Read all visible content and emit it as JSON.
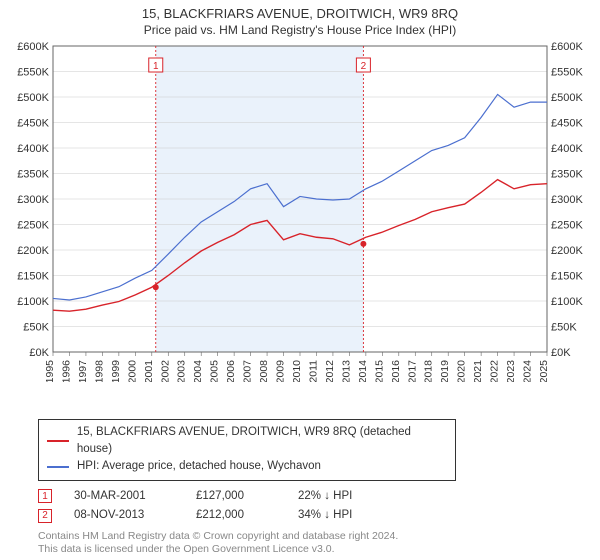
{
  "title": "15, BLACKFRIARS AVENUE, DROITWICH, WR9 8RQ",
  "subtitle": "Price paid vs. HM Land Registry's House Price Index (HPI)",
  "chart": {
    "type": "line",
    "background_color": "#ffffff",
    "plot_border_color": "#666666",
    "grid_color": "#cccccc",
    "band_color": "#eaf2fb",
    "xlim": [
      1995,
      2025
    ],
    "ylim_left": [
      0,
      600000
    ],
    "ylim_right": [
      0,
      600000
    ],
    "ytick_step": 50000,
    "ytick_format_prefix": "£",
    "ytick_format_suffix": "K",
    "x_categories": [
      1995,
      1996,
      1997,
      1998,
      1999,
      2000,
      2001,
      2002,
      2003,
      2004,
      2005,
      2006,
      2007,
      2008,
      2009,
      2010,
      2011,
      2012,
      2013,
      2014,
      2015,
      2016,
      2017,
      2018,
      2019,
      2020,
      2021,
      2022,
      2023,
      2024,
      2025
    ],
    "band": {
      "start_year": 2001.24,
      "end_year": 2013.85
    },
    "series": [
      {
        "key": "hpi",
        "label": "HPI: Average price, detached house, Wychavon",
        "color": "#4b6fcf",
        "line_width": 1.2,
        "data": [
          [
            1995,
            105000
          ],
          [
            1996,
            102000
          ],
          [
            1997,
            108000
          ],
          [
            1998,
            118000
          ],
          [
            1999,
            128000
          ],
          [
            2000,
            145000
          ],
          [
            2001,
            160000
          ],
          [
            2002,
            192000
          ],
          [
            2003,
            225000
          ],
          [
            2004,
            255000
          ],
          [
            2005,
            275000
          ],
          [
            2006,
            295000
          ],
          [
            2007,
            320000
          ],
          [
            2008,
            330000
          ],
          [
            2009,
            285000
          ],
          [
            2010,
            305000
          ],
          [
            2011,
            300000
          ],
          [
            2012,
            298000
          ],
          [
            2013,
            300000
          ],
          [
            2014,
            320000
          ],
          [
            2015,
            335000
          ],
          [
            2016,
            355000
          ],
          [
            2017,
            375000
          ],
          [
            2018,
            395000
          ],
          [
            2019,
            405000
          ],
          [
            2020,
            420000
          ],
          [
            2021,
            460000
          ],
          [
            2022,
            505000
          ],
          [
            2023,
            480000
          ],
          [
            2024,
            490000
          ],
          [
            2025,
            490000
          ]
        ]
      },
      {
        "key": "property",
        "label": "15, BLACKFRIARS AVENUE, DROITWICH, WR9 8RQ (detached house)",
        "color": "#d8232a",
        "line_width": 1.4,
        "data": [
          [
            1995,
            82000
          ],
          [
            1996,
            80000
          ],
          [
            1997,
            84000
          ],
          [
            1998,
            92000
          ],
          [
            1999,
            99000
          ],
          [
            2000,
            112000
          ],
          [
            2001,
            127000
          ],
          [
            2002,
            150000
          ],
          [
            2003,
            175000
          ],
          [
            2004,
            198000
          ],
          [
            2005,
            215000
          ],
          [
            2006,
            230000
          ],
          [
            2007,
            250000
          ],
          [
            2008,
            258000
          ],
          [
            2009,
            220000
          ],
          [
            2010,
            232000
          ],
          [
            2011,
            225000
          ],
          [
            2012,
            222000
          ],
          [
            2013,
            210000
          ],
          [
            2014,
            225000
          ],
          [
            2015,
            235000
          ],
          [
            2016,
            248000
          ],
          [
            2017,
            260000
          ],
          [
            2018,
            275000
          ],
          [
            2019,
            283000
          ],
          [
            2020,
            290000
          ],
          [
            2021,
            313000
          ],
          [
            2022,
            338000
          ],
          [
            2023,
            320000
          ],
          [
            2024,
            328000
          ],
          [
            2025,
            330000
          ]
        ]
      }
    ],
    "sale_markers": [
      {
        "n": 1,
        "year": 2001.24,
        "value": 127000,
        "color": "#d8232a"
      },
      {
        "n": 2,
        "year": 2013.85,
        "value": 212000,
        "color": "#d8232a"
      }
    ],
    "label_fontsize": 11
  },
  "legend": {
    "items": [
      {
        "color": "#d8232a",
        "text": "15, BLACKFRIARS AVENUE, DROITWICH, WR9 8RQ (detached house)"
      },
      {
        "color": "#4b6fcf",
        "text": "HPI: Average price, detached house, Wychavon"
      }
    ]
  },
  "sales": [
    {
      "n": "1",
      "marker_color": "#d8232a",
      "date": "30-MAR-2001",
      "price": "£127,000",
      "hpi_delta": "22% ↓ HPI"
    },
    {
      "n": "2",
      "marker_color": "#d8232a",
      "date": "08-NOV-2013",
      "price": "£212,000",
      "hpi_delta": "34% ↓ HPI"
    }
  ],
  "footer_line1": "Contains HM Land Registry data © Crown copyright and database right 2024.",
  "footer_line2": "This data is licensed under the Open Government Licence v3.0."
}
